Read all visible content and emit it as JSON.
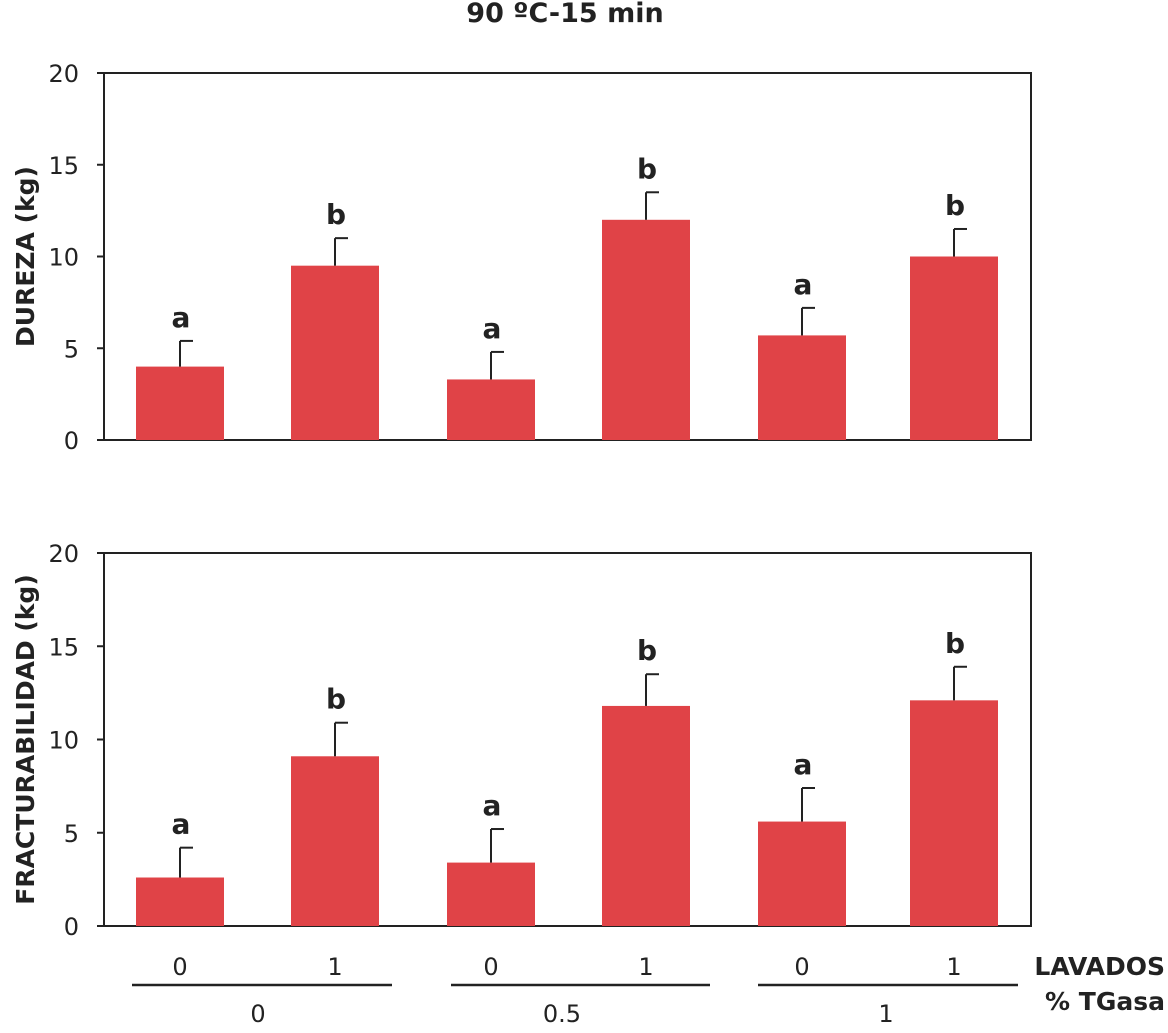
{
  "title": "90 ºC-15 min",
  "bar_color": "#e04347",
  "x_axis": {
    "row1_label": "LAVADOS",
    "row2_label": "% TGasa",
    "lavados_ticks": [
      "0",
      "1",
      "0",
      "1",
      "0",
      "1"
    ],
    "tgasa_groups": [
      "0",
      "0.5",
      "1"
    ]
  },
  "chart_data": [
    {
      "type": "bar",
      "ylabel": "DUREZA (kg)",
      "ylim": [
        0,
        20
      ],
      "yticks": [
        "0",
        "5",
        "10",
        "15",
        "20"
      ],
      "categories": [
        "TG0-L0",
        "TG0-L1",
        "TG0.5-L0",
        "TG0.5-L1",
        "TG1-L0",
        "TG1-L1"
      ],
      "values": [
        4.0,
        9.5,
        3.3,
        12.0,
        5.7,
        10.0
      ],
      "errors": [
        1.4,
        1.5,
        1.5,
        1.5,
        1.5,
        1.5
      ],
      "letters": [
        "a",
        "b",
        "a",
        "b",
        "a",
        "b"
      ]
    },
    {
      "type": "bar",
      "ylabel": "FRACTURABILIDAD  (kg)",
      "ylim": [
        0,
        20
      ],
      "yticks": [
        "0",
        "5",
        "10",
        "15",
        "20"
      ],
      "categories": [
        "TG0-L0",
        "TG0-L1",
        "TG0.5-L0",
        "TG0.5-L1",
        "TG1-L0",
        "TG1-L1"
      ],
      "values": [
        2.6,
        9.1,
        3.4,
        11.8,
        5.6,
        12.1
      ],
      "errors": [
        1.6,
        1.8,
        1.8,
        1.7,
        1.8,
        1.8
      ],
      "letters": [
        "a",
        "b",
        "a",
        "b",
        "a",
        "b"
      ]
    }
  ]
}
